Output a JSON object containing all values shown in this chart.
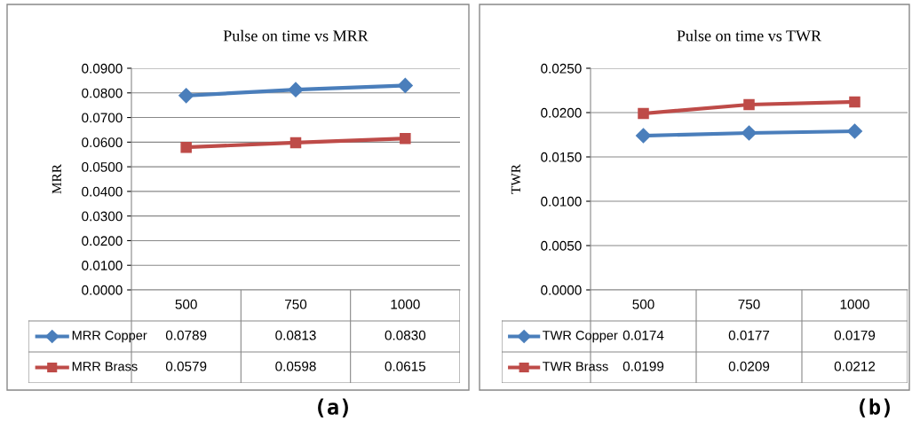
{
  "chart_data": [
    {
      "type": "line",
      "title": "Pulse on time vs MRR",
      "ylabel": "MRR",
      "categories": [
        "500",
        "750",
        "1000"
      ],
      "series": [
        {
          "name": "MRR Copper",
          "color": "#4a7ebb",
          "marker": "diamond",
          "values": [
            0.0789,
            0.0813,
            0.083
          ],
          "value_labels": [
            "0.0789",
            "0.0813",
            "0.0830"
          ]
        },
        {
          "name": "MRR Brass",
          "color": "#be4b48",
          "marker": "square",
          "values": [
            0.0579,
            0.0598,
            0.0615
          ],
          "value_labels": [
            "0.0579",
            "0.0598",
            "0.0615"
          ]
        }
      ],
      "ylim": [
        0,
        0.09
      ],
      "yticks": [
        {
          "value": 0,
          "label": "0.0000"
        },
        {
          "value": 0.01,
          "label": "0.0100"
        },
        {
          "value": 0.02,
          "label": "0.0200"
        },
        {
          "value": 0.03,
          "label": "0.0300"
        },
        {
          "value": 0.04,
          "label": "0.0400"
        },
        {
          "value": 0.05,
          "label": "0.0500"
        },
        {
          "value": 0.06,
          "label": "0.0600"
        },
        {
          "value": 0.07,
          "label": "0.0700"
        },
        {
          "value": 0.08,
          "label": "0.0800"
        },
        {
          "value": 0.09,
          "label": "0.0900"
        }
      ],
      "grid": "y",
      "legend": "bottom",
      "annotations": [
        "(a)"
      ]
    },
    {
      "type": "line",
      "title": "Pulse on time vs TWR",
      "ylabel": "TWR",
      "categories": [
        "500",
        "750",
        "1000"
      ],
      "series": [
        {
          "name": "TWR Copper",
          "color": "#4a7ebb",
          "marker": "diamond",
          "values": [
            0.0174,
            0.0177,
            0.0179
          ],
          "value_labels": [
            "0.0174",
            "0.0177",
            "0.0179"
          ]
        },
        {
          "name": "TWR Brass",
          "color": "#be4b48",
          "marker": "square",
          "values": [
            0.0199,
            0.0209,
            0.0212
          ],
          "value_labels": [
            "0.0199",
            "0.0209",
            "0.0212"
          ]
        }
      ],
      "ylim": [
        0,
        0.025
      ],
      "yticks": [
        {
          "value": 0,
          "label": "0.0000"
        },
        {
          "value": 0.005,
          "label": "0.0050"
        },
        {
          "value": 0.01,
          "label": "0.0100"
        },
        {
          "value": 0.015,
          "label": "0.0150"
        },
        {
          "value": 0.02,
          "label": "0.0200"
        },
        {
          "value": 0.025,
          "label": "0.0250"
        }
      ],
      "grid": "y",
      "legend": "bottom",
      "annotations": [
        "(b)"
      ]
    }
  ]
}
